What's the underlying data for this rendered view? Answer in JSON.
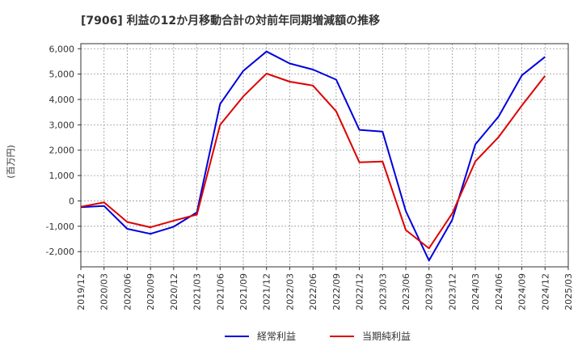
{
  "chart_data": {
    "type": "line",
    "title": "[7906]  利益の12か月移動合計の対前年同期増減額の推移",
    "ylabel": "(百万円)",
    "xlabel": "",
    "ylim": [
      -2600,
      6200
    ],
    "yticks": [
      -2000,
      -1000,
      0,
      1000,
      2000,
      3000,
      4000,
      5000,
      6000
    ],
    "ytick_labels": [
      "-2,000",
      "-1,000",
      "0",
      "1,000",
      "2,000",
      "3,000",
      "4,000",
      "5,000",
      "6,000"
    ],
    "categories": [
      "2019/12",
      "2020/03",
      "2020/06",
      "2020/09",
      "2020/12",
      "2021/03",
      "2021/06",
      "2021/09",
      "2021/12",
      "2022/03",
      "2022/06",
      "2022/09",
      "2022/12",
      "2023/03",
      "2023/06",
      "2023/09",
      "2023/12",
      "2024/03",
      "2024/06",
      "2024/09",
      "2024/12",
      "2025/03"
    ],
    "grid": true,
    "legend_position": "bottom-center",
    "series": [
      {
        "name": "経常利益",
        "color": "#0000dd",
        "values": [
          -250,
          -200,
          -1100,
          -1300,
          -1020,
          -450,
          3820,
          5130,
          5890,
          5420,
          5180,
          4780,
          2800,
          2730,
          -400,
          -2350,
          -750,
          2230,
          3330,
          4950,
          5680,
          null
        ]
      },
      {
        "name": "当期純利益",
        "color": "#dd0000",
        "values": [
          -230,
          -60,
          -830,
          -1040,
          -780,
          -540,
          3000,
          4120,
          5020,
          4700,
          4550,
          3530,
          1520,
          1550,
          -1150,
          -1870,
          -500,
          1560,
          2520,
          3760,
          4930,
          null
        ]
      }
    ]
  }
}
